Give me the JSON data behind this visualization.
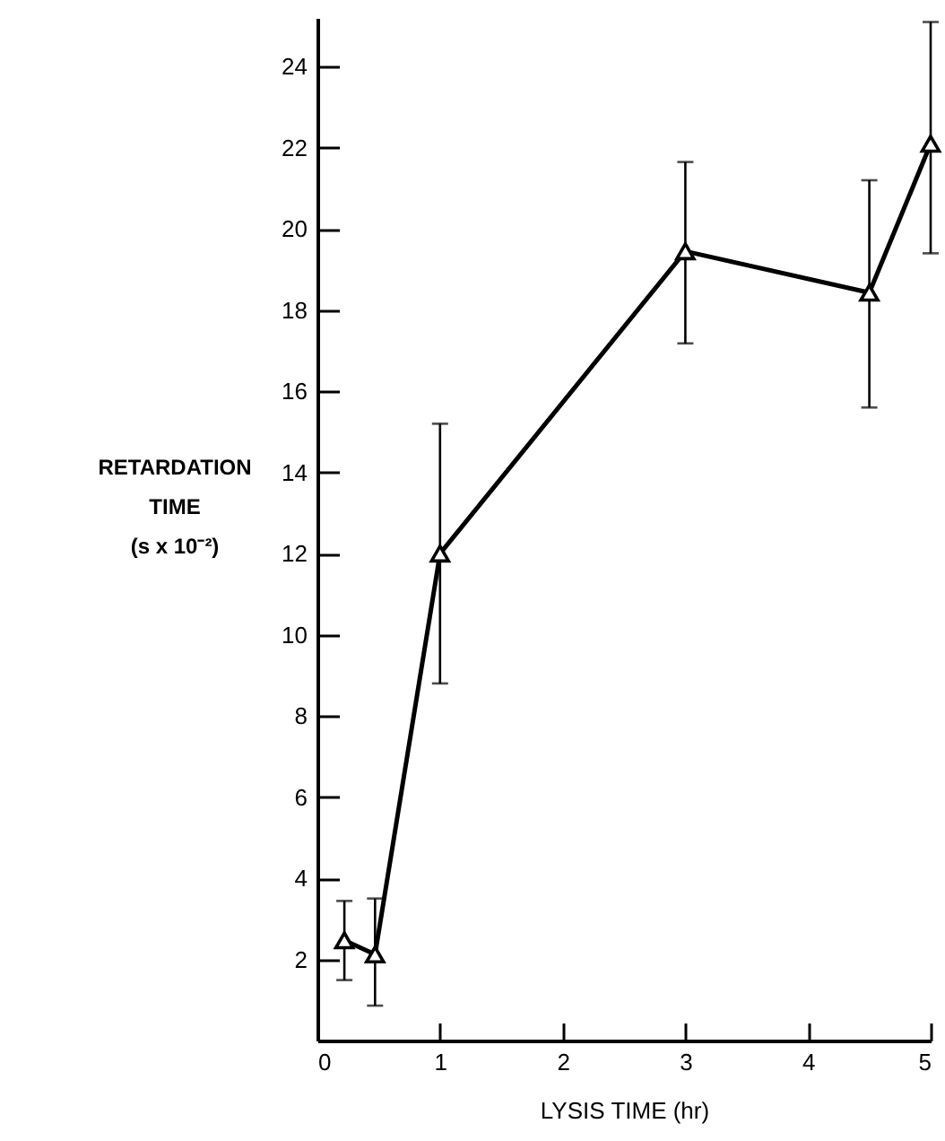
{
  "chart_data": {
    "type": "line",
    "xlabel": "LYSIS TIME (hr)",
    "ylabel": "RETARDATION\nTIME\n(s x 10⁻²)",
    "x": [
      0.22,
      0.47,
      1,
      3,
      4.5,
      5
    ],
    "values": [
      2.47,
      2.12,
      12,
      19.45,
      18.43,
      22.1
    ],
    "errors": [
      [
        1.49,
        3.44
      ],
      [
        0.86,
        3.5
      ],
      [
        8.8,
        15.2
      ],
      [
        17.18,
        21.65
      ],
      [
        15.6,
        21.2
      ],
      [
        19.4,
        25.1
      ]
    ],
    "color": "#000000",
    "marker": "triangle",
    "line_style": "solid",
    "grid": false,
    "xlim": [
      0,
      5
    ],
    "xticks": [
      0,
      1,
      2,
      3,
      4,
      5
    ],
    "ylim": [
      0,
      25.2
    ],
    "yticks": [
      2,
      4,
      6,
      8,
      10,
      12,
      14,
      16,
      18,
      20,
      22,
      24
    ]
  }
}
